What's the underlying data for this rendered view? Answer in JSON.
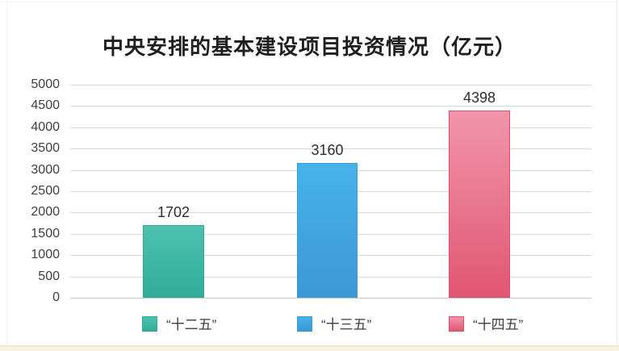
{
  "chart_data": {
    "type": "bar",
    "title": "中央安排的基本建设项目投资情况（亿元）",
    "categories": [
      "“十二五”",
      "“十三五”",
      "“十四五”"
    ],
    "values": [
      1702,
      3160,
      4398
    ],
    "value_labels": [
      "1702",
      "3160",
      "4398"
    ],
    "xlabel": "",
    "ylabel": "",
    "ylim": [
      0,
      5000
    ],
    "yticks": [
      5000,
      4500,
      4000,
      3500,
      3000,
      2500,
      2000,
      1500,
      1000,
      500,
      0
    ],
    "grid": "horizontal",
    "legend_position": "bottom",
    "series_colors": [
      {
        "name": "“十二五”",
        "fill_top": "#4ec1b1",
        "fill_bottom": "#30ad99",
        "border": "#2fa795"
      },
      {
        "name": "“十三五”",
        "fill_top": "#47b3e9",
        "fill_bottom": "#3d97d6",
        "border": "#3a9bd4"
      },
      {
        "name": "“十四五”",
        "fill_top": "#f295a9",
        "fill_bottom": "#e05674",
        "border": "#da4f6e"
      }
    ]
  },
  "colors": {
    "background": "#ffffff",
    "grid_line": "#d9d9d9",
    "baseline": "#c7c7c7",
    "title_text": "#1f1f1f",
    "tick_text": "#3f3f3f",
    "value_text": "#2e2e2e",
    "legend_text": "#3d3d3d",
    "bottom_strip": "#f8f2e3"
  }
}
